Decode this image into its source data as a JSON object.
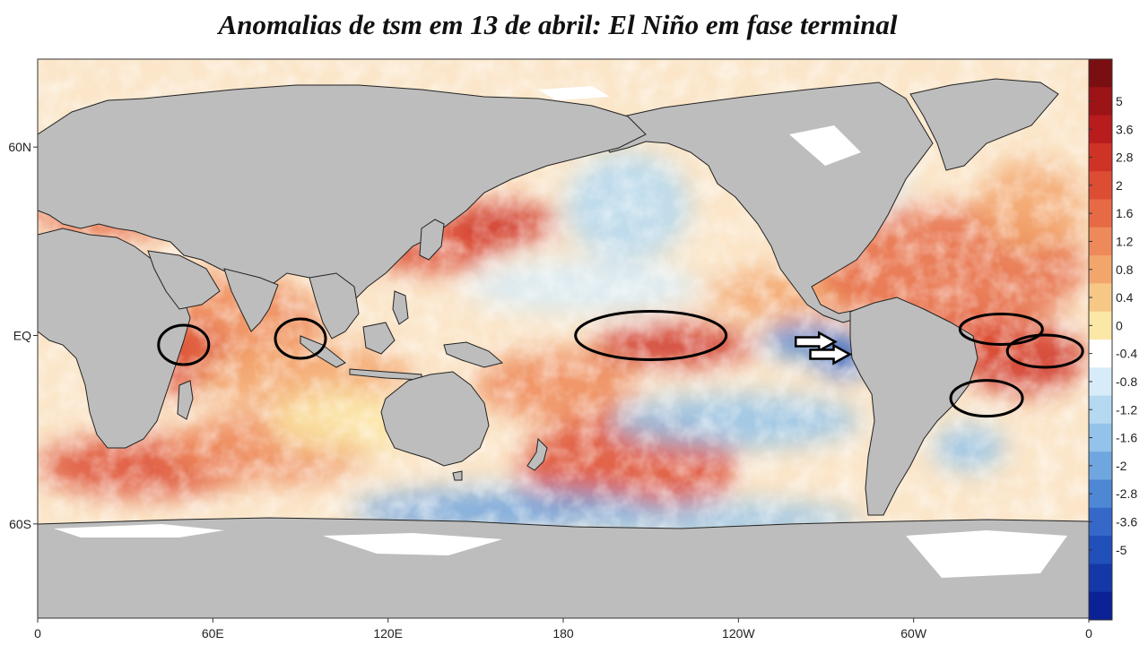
{
  "title": "Anomalias de tsm em 13 de abril: El Niño em fase terminal",
  "axes": {
    "x_ticks": [
      "0",
      "60E",
      "120E",
      "180",
      "120W",
      "60W",
      "0"
    ],
    "y_ticks": [
      "60N",
      "EQ",
      "60S"
    ]
  },
  "colorbar": {
    "labels": [
      "5",
      "3.6",
      "2.8",
      "2",
      "1.6",
      "1.2",
      "0.8",
      "0.4",
      "0",
      "-0.4",
      "-0.8",
      "-1.2",
      "-1.6",
      "-2",
      "-2.8",
      "-3.6",
      "-5"
    ],
    "colors": [
      "#7a0f12",
      "#9c1416",
      "#b91c1c",
      "#cf3325",
      "#dd4d34",
      "#e66b45",
      "#ee8a5a",
      "#f3a66c",
      "#f7c786",
      "#fbe7a6",
      "#ffffff",
      "#d7ecf8",
      "#b4d9f1",
      "#93c3ea",
      "#70a6e0",
      "#4e87d4",
      "#3568c8",
      "#2150ba",
      "#1538a8",
      "#0b2296"
    ]
  },
  "land_color": "#bdbdbd",
  "ice_color": "#ffffff",
  "annotations": {
    "ellipses": [
      {
        "label": "western-indian-ocean",
        "lon": 50,
        "lat": -3
      },
      {
        "label": "eastern-indian-ocean",
        "lon": 90,
        "lat": -1
      },
      {
        "label": "central-pacific",
        "lon": -150,
        "lat": 0
      },
      {
        "label": "tropical-north-atlantic",
        "lon": -30,
        "lat": 2
      },
      {
        "label": "tropical-south-atlantic",
        "lon": -15,
        "lat": -5
      },
      {
        "label": "south-atlantic",
        "lon": -35,
        "lat": -20
      }
    ],
    "arrows": [
      {
        "label": "eastern-pacific-arrow-upper",
        "lon": -93,
        "lat": -2
      },
      {
        "label": "eastern-pacific-arrow-lower",
        "lon": -88,
        "lat": -6
      }
    ]
  }
}
